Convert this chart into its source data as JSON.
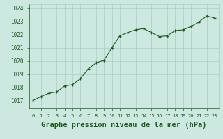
{
  "x": [
    0,
    1,
    2,
    3,
    4,
    5,
    6,
    7,
    8,
    9,
    10,
    11,
    12,
    13,
    14,
    15,
    16,
    17,
    18,
    19,
    20,
    21,
    22,
    23
  ],
  "y": [
    1017.0,
    1017.3,
    1017.55,
    1017.65,
    1018.1,
    1018.2,
    1018.65,
    1019.4,
    1019.85,
    1020.05,
    1021.0,
    1021.9,
    1022.15,
    1022.35,
    1022.45,
    1022.15,
    1021.85,
    1021.9,
    1022.3,
    1022.35,
    1022.6,
    1022.95,
    1023.4,
    1023.25
  ],
  "line_color": "#1a5c1a",
  "marker_color": "#1a5c1a",
  "bg_color": "#cce8e0",
  "grid_color": "#aaccc4",
  "xlabel": "Graphe pression niveau de la mer (hPa)",
  "xlabel_fontsize": 7.5,
  "xtick_labels": [
    "0",
    "1",
    "2",
    "3",
    "4",
    "5",
    "6",
    "7",
    "8",
    "9",
    "10",
    "11",
    "12",
    "13",
    "14",
    "15",
    "16",
    "17",
    "18",
    "19",
    "20",
    "21",
    "22",
    "23"
  ],
  "ylim": [
    1016.4,
    1024.3
  ],
  "yticks": [
    1017,
    1018,
    1019,
    1020,
    1021,
    1022,
    1023,
    1024
  ],
  "ytick_fontsize": 5.5,
  "xtick_fontsize": 5.0,
  "xlim": [
    -0.5,
    23.5
  ]
}
